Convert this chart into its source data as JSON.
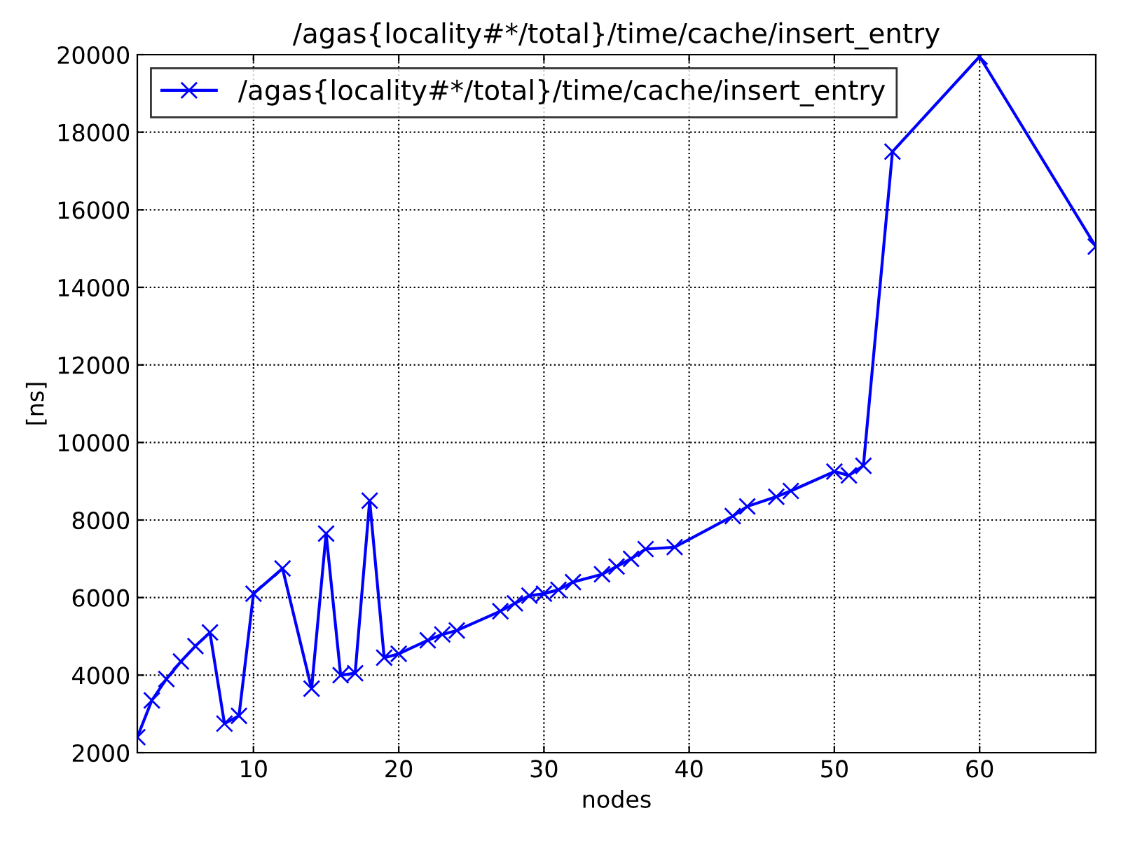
{
  "chart_data": {
    "type": "line",
    "title": "/agas{locality#*/total}/time/cache/insert_entry",
    "xlabel": "nodes",
    "ylabel": "[ns]",
    "series": [
      {
        "name": "/agas{locality#*/total}/time/cache/insert_entry",
        "color": "#0000ff",
        "x": [
          2,
          3,
          4,
          5,
          6,
          7,
          8,
          9,
          10,
          12,
          14,
          15,
          16,
          17,
          18,
          19,
          20,
          22,
          23,
          24,
          27,
          28,
          29,
          30,
          31,
          32,
          34,
          35,
          36,
          37,
          39,
          43,
          44,
          46,
          47,
          50,
          51,
          52,
          54,
          60,
          68
        ],
        "values": [
          2400,
          3350,
          3900,
          4350,
          4750,
          5100,
          2750,
          2950,
          6100,
          6750,
          3650,
          7650,
          4000,
          4050,
          8500,
          4450,
          4550,
          4900,
          5050,
          5150,
          5650,
          5850,
          6050,
          6100,
          6200,
          6400,
          6600,
          6800,
          7000,
          7250,
          7300,
          8100,
          8350,
          8600,
          8750,
          9250,
          9150,
          9400,
          17500,
          19950,
          15050
        ]
      }
    ],
    "xlim": [
      2,
      68
    ],
    "xticks": [
      10,
      20,
      30,
      40,
      50,
      60
    ],
    "ylim": [
      2000,
      20000
    ],
    "yticks": [
      2000,
      4000,
      6000,
      8000,
      10000,
      12000,
      14000,
      16000,
      18000,
      20000
    ],
    "grid": true,
    "legend": "top left",
    "marker": "cross",
    "line_style": "solid"
  }
}
